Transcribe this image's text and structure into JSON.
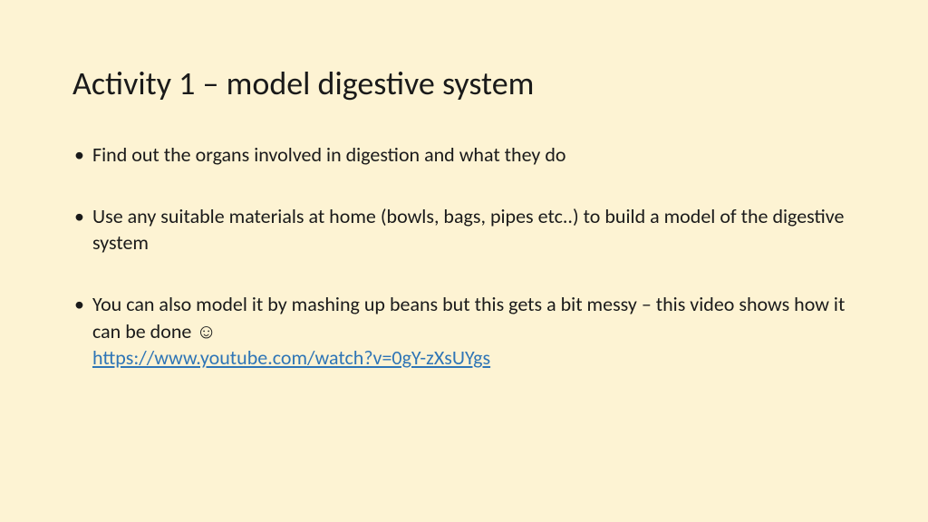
{
  "title": "Activity 1 – model digestive system",
  "bullets": [
    {
      "text": "Find out the organs involved in digestion and what they do"
    },
    {
      "text": "Use any suitable materials at home (bowls, bags, pipes etc..) to build a model of the digestive system"
    },
    {
      "text_before_link": "You can also model it by mashing up beans but this gets a bit messy – this video shows how it can be done ",
      "smiley": "☺",
      "link_text": "https://www.youtube.com/watch?v=0gY-zXsUYgs",
      "link_href": "https://www.youtube.com/watch?v=0gY-zXsUYgs"
    }
  ],
  "colors": {
    "background": "#fdf3d3",
    "text": "#1a1a1a",
    "link": "#2e75b6"
  }
}
